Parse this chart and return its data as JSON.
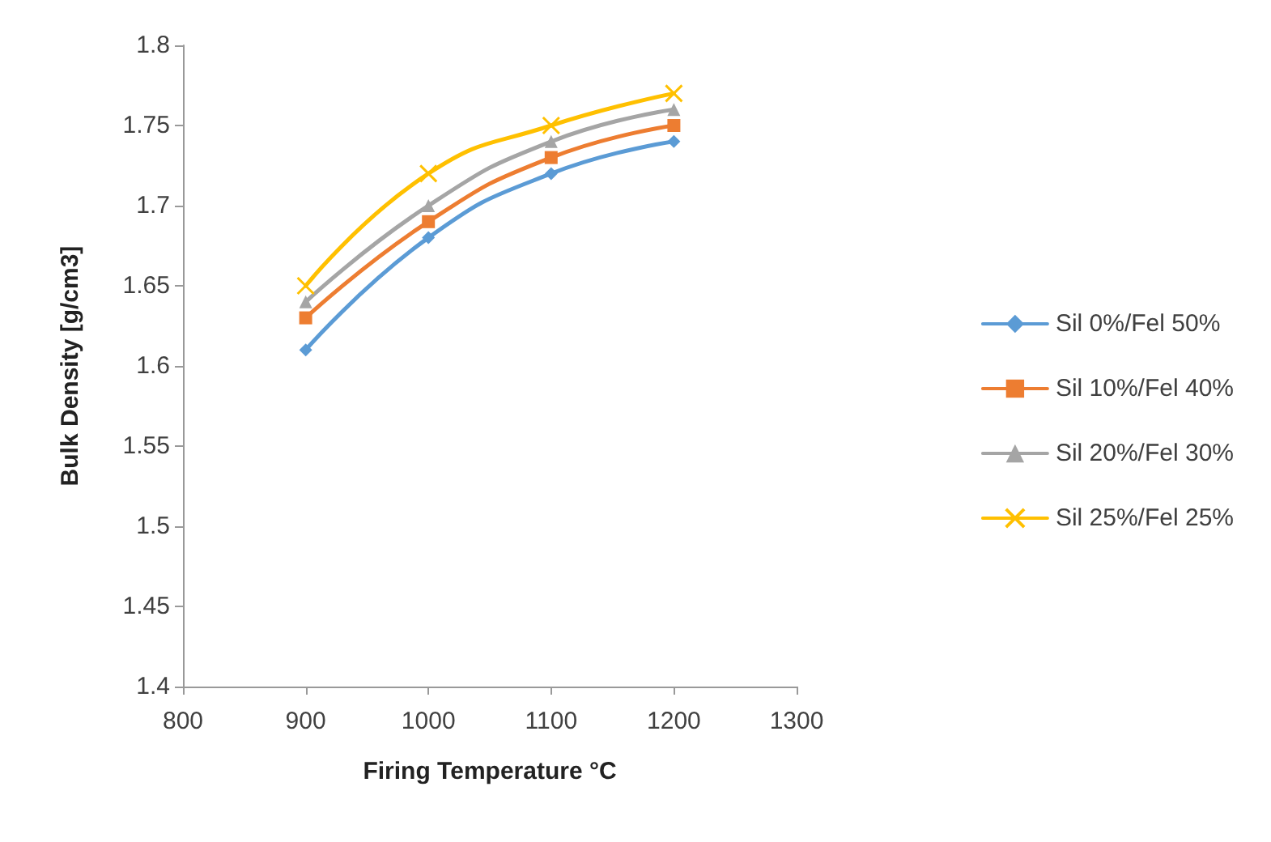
{
  "chart_data": {
    "type": "line",
    "xlabel": "Firing Temperature °C",
    "ylabel": "Bulk Density [g/cm3]",
    "x": [
      900,
      1000,
      1100,
      1200
    ],
    "xlim": [
      800,
      1300
    ],
    "xticks": [
      800,
      900,
      1000,
      1100,
      1200,
      1300
    ],
    "ylim": [
      1.4,
      1.8
    ],
    "yticks": [
      1.4,
      1.45,
      1.5,
      1.55,
      1.6,
      1.65,
      1.7,
      1.75,
      1.8
    ],
    "grid": false,
    "legend": "right",
    "line_style": "solid",
    "series": [
      {
        "name": "Sil 0%/Fel 50%",
        "color": "#5b9bd5",
        "marker": "diamond",
        "values": [
          1.61,
          1.68,
          1.72,
          1.74
        ]
      },
      {
        "name": "Sil 10%/Fel 40%",
        "color": "#ed7d31",
        "marker": "square",
        "values": [
          1.63,
          1.69,
          1.73,
          1.75
        ]
      },
      {
        "name": "Sil 20%/Fel 30%",
        "color": "#a5a5a5",
        "marker": "triangle",
        "values": [
          1.64,
          1.7,
          1.74,
          1.76
        ]
      },
      {
        "name": "Sil 25%/Fel 25%",
        "color": "#ffc000",
        "marker": "cross",
        "values": [
          1.65,
          1.72,
          1.75,
          1.77
        ]
      }
    ]
  }
}
